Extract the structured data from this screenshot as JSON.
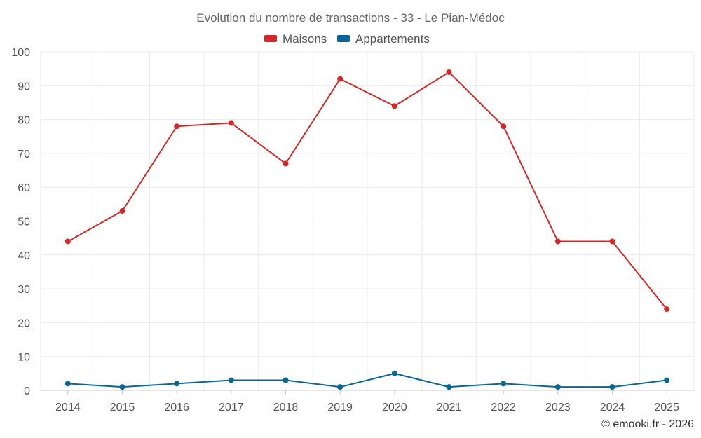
{
  "chart_data": {
    "type": "line",
    "title": "Evolution du nombre de transactions - 33 - Le Pian-Médoc",
    "categories": [
      "2014",
      "2015",
      "2016",
      "2017",
      "2018",
      "2019",
      "2020",
      "2021",
      "2022",
      "2023",
      "2024",
      "2025"
    ],
    "series": [
      {
        "name": "Maisons",
        "color": "#d62728",
        "values": [
          44,
          53,
          78,
          79,
          67,
          92,
          84,
          94,
          78,
          44,
          44,
          24
        ]
      },
      {
        "name": "Appartements",
        "color": "#0a6699",
        "values": [
          2,
          1,
          2,
          3,
          3,
          1,
          5,
          1,
          2,
          1,
          1,
          3
        ]
      }
    ],
    "ylim": [
      0,
      100
    ],
    "yticks": [
      "0",
      "10",
      "20",
      "30",
      "40",
      "50",
      "60",
      "70",
      "80",
      "90",
      "100"
    ],
    "grid": true,
    "legend": "top-center",
    "xlabel": "",
    "ylabel": ""
  },
  "credit": "© emooki.fr - 2026"
}
